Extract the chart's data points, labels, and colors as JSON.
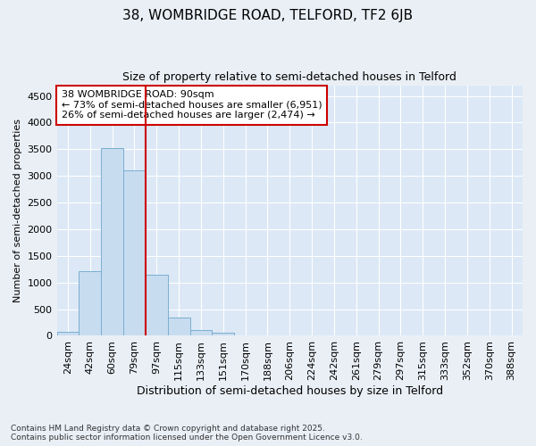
{
  "title_line1": "38, WOMBRIDGE ROAD, TELFORD, TF2 6JB",
  "title_line2": "Size of property relative to semi-detached houses in Telford",
  "xlabel": "Distribution of semi-detached houses by size in Telford",
  "ylabel": "Number of semi-detached properties",
  "categories": [
    "24sqm",
    "42sqm",
    "60sqm",
    "79sqm",
    "97sqm",
    "115sqm",
    "133sqm",
    "151sqm",
    "170sqm",
    "188sqm",
    "206sqm",
    "224sqm",
    "242sqm",
    "261sqm",
    "279sqm",
    "297sqm",
    "315sqm",
    "333sqm",
    "352sqm",
    "370sqm",
    "388sqm"
  ],
  "values": [
    80,
    1220,
    3520,
    3100,
    1150,
    340,
    100,
    50,
    0,
    0,
    0,
    0,
    0,
    0,
    0,
    0,
    0,
    0,
    0,
    0,
    0
  ],
  "bar_color": "#c8dcf0",
  "bar_edge_color": "#7aaed0",
  "vline_color": "#cc0000",
  "vline_x_index": 4,
  "annotation_title": "38 WOMBRIDGE ROAD: 90sqm",
  "annotation_line1": "← 73% of semi-detached houses are smaller (6,951)",
  "annotation_line2": "26% of semi-detached houses are larger (2,474) →",
  "annotation_box_color": "#cc0000",
  "ylim": [
    0,
    4700
  ],
  "yticks": [
    0,
    500,
    1000,
    1500,
    2000,
    2500,
    3000,
    3500,
    4000,
    4500
  ],
  "footnote1": "Contains HM Land Registry data © Crown copyright and database right 2025.",
  "footnote2": "Contains public sector information licensed under the Open Government Licence v3.0.",
  "bg_color": "#eaeff6",
  "plot_bg_color": "#dce8f5",
  "title1_fontsize": 11,
  "title2_fontsize": 9,
  "xlabel_fontsize": 9,
  "ylabel_fontsize": 8,
  "tick_fontsize": 8,
  "annot_fontsize": 8
}
